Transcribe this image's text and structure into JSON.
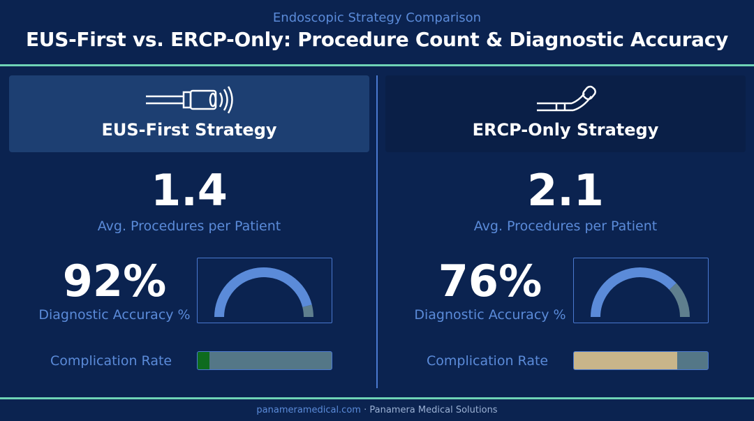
{
  "header": {
    "subtitle": "Endoscopic Strategy Comparison",
    "title": "EUS-First vs. ERCP-Only: Procedure Count & Diagnostic Accuracy"
  },
  "colors": {
    "background": "#0b2350",
    "accent_line": "#6fd3b6",
    "label_blue": "#5b8bd9",
    "gauge_fill": "#5b8bd9",
    "gauge_track": "#5f7f8e",
    "eus_complication_fill": "#0e6b1e",
    "ercp_complication_fill": "#c8b58a"
  },
  "eus": {
    "icon": "ultrasound-endoscope-icon",
    "title": "EUS-First Strategy",
    "avg_procedures": "1.4",
    "avg_procedures_label": "Avg. Procedures per Patient",
    "accuracy": "92%",
    "accuracy_value": 92,
    "accuracy_label": "Diagnostic Accuracy %",
    "complication_label": "Complication Rate",
    "complication_fraction": 0.09
  },
  "ercp": {
    "icon": "ercp-scope-icon",
    "title": "ERCP-Only Strategy",
    "avg_procedures": "2.1",
    "avg_procedures_label": "Avg. Procedures per Patient",
    "accuracy": "76%",
    "accuracy_value": 76,
    "accuracy_label": "Diagnostic Accuracy %",
    "complication_label": "Complication Rate",
    "complication_fraction": 0.77
  },
  "footer": {
    "domain": "panameramedical.com",
    "separator": "·",
    "company": "Panamera Medical Solutions"
  }
}
